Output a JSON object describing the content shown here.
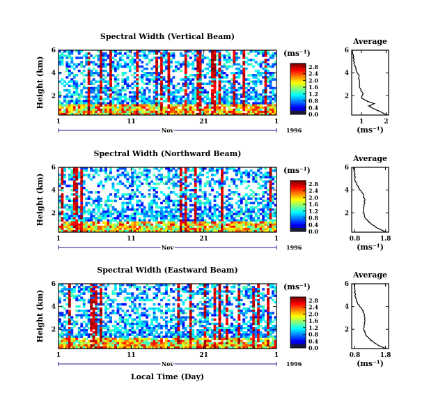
{
  "chart_data": [
    {
      "type": "heatmap",
      "title": "Spectral Width (Vertical Beam)",
      "ylabel": "Height (km)",
      "ylim": [
        0.3,
        6
      ],
      "y_ticks": [
        "6",
        "4",
        "2"
      ],
      "xlim": [
        1,
        31
      ],
      "x_ticks": [
        "1",
        "11",
        "21",
        "1"
      ],
      "month_label": "Nov",
      "year_label": "1996",
      "colorbar": {
        "unit": "(ms⁻¹)",
        "ticks": [
          "2.8",
          "2.4",
          "2.0",
          "1.6",
          "1.2",
          "0.8",
          "0.4",
          "0.0"
        ],
        "range": [
          0,
          3.0
        ]
      },
      "profile": {
        "title": "Average",
        "xlabel": "(ms⁻¹)",
        "x_ticks": [
          "1",
          "2"
        ],
        "y_ticks": [
          "6",
          "4",
          "2"
        ],
        "xlim": [
          0.6,
          2.1
        ],
        "ylim": [
          0.3,
          6
        ],
        "points": [
          [
            2.05,
            0.3
          ],
          [
            1.85,
            0.5
          ],
          [
            1.65,
            0.7
          ],
          [
            1.45,
            0.9
          ],
          [
            1.3,
            1.1
          ],
          [
            1.5,
            1.3
          ],
          [
            1.25,
            1.5
          ],
          [
            1.0,
            1.8
          ],
          [
            1.05,
            2.2
          ],
          [
            0.95,
            2.6
          ],
          [
            0.9,
            3.2
          ],
          [
            0.88,
            3.8
          ],
          [
            0.8,
            4.2
          ],
          [
            0.72,
            4.7
          ],
          [
            0.68,
            5.2
          ],
          [
            0.65,
            5.6
          ],
          [
            0.62,
            6.0
          ]
        ]
      }
    },
    {
      "type": "heatmap",
      "title": "Spectral Width (Northward Beam)",
      "ylabel": "Height (km)",
      "ylim": [
        0.3,
        6
      ],
      "y_ticks": [
        "6",
        "4",
        "2"
      ],
      "xlim": [
        1,
        31
      ],
      "x_ticks": [
        "1",
        "11",
        "21",
        "1"
      ],
      "month_label": "Nov",
      "year_label": "1996",
      "colorbar": {
        "unit": "(ms⁻¹)",
        "ticks": [
          "2.8",
          "2.4",
          "2.0",
          "1.6",
          "1.2",
          "0.8",
          "0.4",
          "0.0"
        ],
        "range": [
          0,
          3.0
        ]
      },
      "profile": {
        "title": "Average",
        "xlabel": "(ms⁻¹)",
        "x_ticks": [
          "0.8",
          "1.8"
        ],
        "y_ticks": [
          "6",
          "4",
          "2"
        ],
        "xlim": [
          0.7,
          1.9
        ],
        "ylim": [
          0.3,
          6
        ],
        "points": [
          [
            1.82,
            0.3
          ],
          [
            1.65,
            0.5
          ],
          [
            1.45,
            0.8
          ],
          [
            1.3,
            1.1
          ],
          [
            1.15,
            1.5
          ],
          [
            1.08,
            2.0
          ],
          [
            1.1,
            2.6
          ],
          [
            1.12,
            3.2
          ],
          [
            1.05,
            3.7
          ],
          [
            0.95,
            4.1
          ],
          [
            0.88,
            4.4
          ],
          [
            0.82,
            4.8
          ],
          [
            0.8,
            5.3
          ],
          [
            0.78,
            5.7
          ],
          [
            0.76,
            6.0
          ]
        ]
      }
    },
    {
      "type": "heatmap",
      "title": "Spectral Width (Eastward Beam)",
      "ylabel": "Height (km)",
      "xlabel": "Local Time (Day)",
      "ylim": [
        0.3,
        6
      ],
      "y_ticks": [
        "6",
        "4",
        "2"
      ],
      "xlim": [
        1,
        31
      ],
      "x_ticks": [
        "1",
        "11",
        "21",
        "1"
      ],
      "month_label": "Nov",
      "year_label": "1996",
      "colorbar": {
        "unit": "(ms⁻¹)",
        "ticks": [
          "2.8",
          "2.4",
          "2.0",
          "1.6",
          "1.2",
          "0.8",
          "0.4",
          "0.0"
        ],
        "range": [
          0,
          3.0
        ]
      },
      "profile": {
        "title": "Average",
        "xlabel": "(ms⁻¹)",
        "x_ticks": [
          "0.8",
          "1.8"
        ],
        "y_ticks": [
          "6",
          "4",
          "2"
        ],
        "xlim": [
          0.7,
          1.9
        ],
        "ylim": [
          0.3,
          6
        ],
        "points": [
          [
            1.82,
            0.3
          ],
          [
            1.62,
            0.5
          ],
          [
            1.45,
            0.8
          ],
          [
            1.3,
            1.1
          ],
          [
            1.15,
            1.5
          ],
          [
            1.1,
            2.0
          ],
          [
            1.12,
            2.6
          ],
          [
            1.12,
            3.2
          ],
          [
            1.05,
            3.7
          ],
          [
            0.95,
            4.1
          ],
          [
            0.86,
            4.4
          ],
          [
            0.82,
            4.8
          ],
          [
            0.8,
            5.3
          ],
          [
            0.79,
            5.7
          ],
          [
            0.78,
            6.0
          ]
        ]
      }
    }
  ]
}
